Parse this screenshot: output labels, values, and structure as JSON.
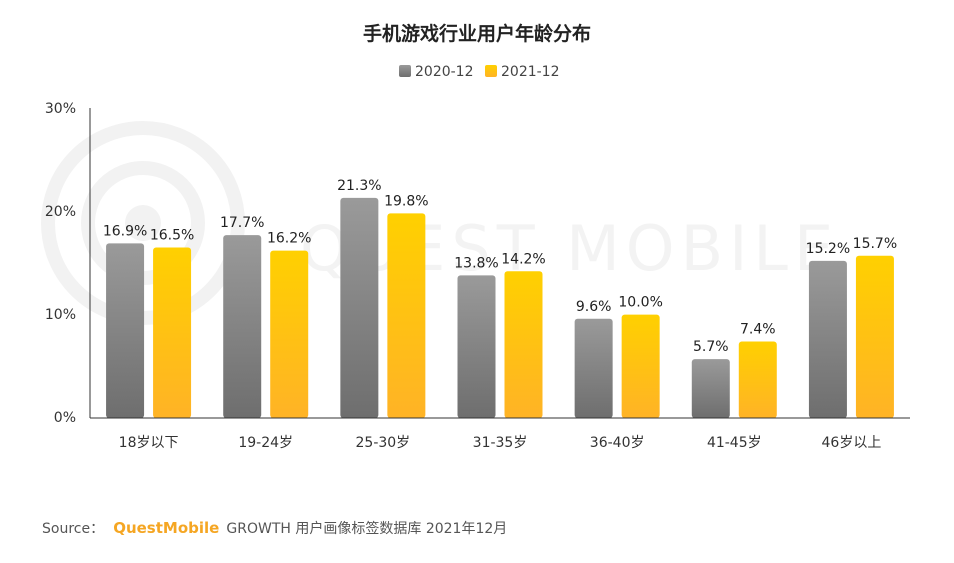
{
  "chart_data": {
    "type": "bar",
    "title": "手机游戏行业用户年龄分布",
    "categories": [
      "18岁以下",
      "19-24岁",
      "25-30岁",
      "31-35岁",
      "36-40岁",
      "41-45岁",
      "46岁以上"
    ],
    "series": [
      {
        "name": "2020-12",
        "values": [
          16.9,
          17.7,
          21.3,
          13.8,
          9.6,
          5.7,
          15.2
        ],
        "labels": [
          "16.9%",
          "17.7%",
          "21.3%",
          "13.8%",
          "9.6%",
          "5.7%",
          "15.2%"
        ]
      },
      {
        "name": "2021-12",
        "values": [
          16.5,
          16.2,
          19.8,
          14.2,
          10.0,
          7.4,
          15.7
        ],
        "labels": [
          "16.5%",
          "16.2%",
          "19.8%",
          "14.2%",
          "10.0%",
          "7.4%",
          "15.7%"
        ]
      }
    ],
    "ylim": [
      0,
      30
    ],
    "yticks": [
      0,
      10,
      20,
      30
    ],
    "ytick_labels": [
      "0%",
      "10%",
      "20%",
      "30%"
    ],
    "xlabel": "",
    "ylabel": "",
    "grid": false,
    "legend_position": "top-center",
    "colors": {
      "series_1_top": "#9a9a9a",
      "series_1_bottom": "#6e6e6e",
      "series_2_top": "#ffd000",
      "series_2_bottom": "#ffb326"
    }
  },
  "source": {
    "prefix": "Source：",
    "brand": "QuestMobile",
    "text": "GROWTH 用户画像标签数据库 2021年12月"
  },
  "watermark": {
    "text": "QUEST MOBILE"
  }
}
